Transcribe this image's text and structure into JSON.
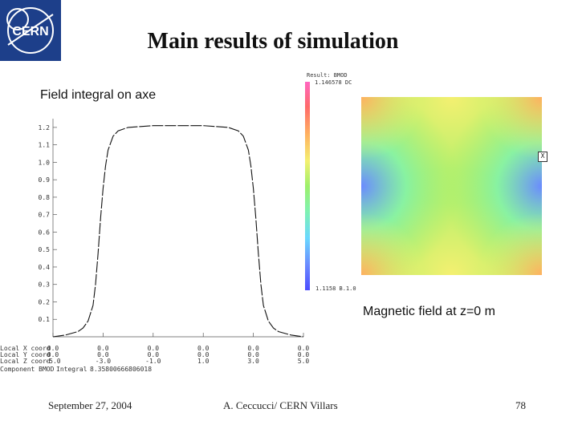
{
  "logo": {
    "text": "CERN",
    "icon": "cern-logo"
  },
  "title": "Main results of simulation",
  "field_label": "Field integral on axe",
  "magnetic_label": "Magnetic field at z=0 m",
  "colorbar": {
    "title": "Result: BMOD",
    "max_value": "1.146578 DC",
    "min_value": "1.1158 B.1.0",
    "colors": [
      "#ff66c0",
      "#ff6a6a",
      "#ffb060",
      "#f4f070",
      "#9ef06a",
      "#7ff2b0",
      "#6ad8ff",
      "#6a8aff",
      "#4c4cff"
    ]
  },
  "axis_marker": "X",
  "plot_text": {
    "ytick_labels": [
      "1.2",
      "1.1",
      "1.0",
      "0.9",
      "0.8",
      "0.7",
      "0.6",
      "0.5",
      "0.4",
      "0.3",
      "0.2",
      "0.1"
    ],
    "row_labels": [
      "Local X coord",
      "Local Y coord",
      "Local Z coord",
      "Component BMOD"
    ],
    "columns": [
      [
        "0.0",
        "0.0",
        "-5.0"
      ],
      [
        "0.0",
        "0.0",
        "-3.0"
      ],
      [
        "0.0",
        "0.0",
        "-1.0"
      ],
      [
        "0.0",
        "0.0",
        "1.0"
      ],
      [
        "0.0",
        "0.0",
        "3.0"
      ],
      [
        "0.0",
        "0.0",
        "5.0"
      ]
    ],
    "integral_label": "Integral",
    "integral_value": "8.35800666806018"
  },
  "chart_data": {
    "type": "line",
    "title": "Field integral on axe",
    "xlabel": "Local Z coord",
    "ylabel": "",
    "xlim": [
      -5.0,
      5.0
    ],
    "ylim": [
      0,
      1.25
    ],
    "y_ticks": [
      0.1,
      0.2,
      0.3,
      0.4,
      0.5,
      0.6,
      0.7,
      0.8,
      0.9,
      1.0,
      1.1,
      1.2
    ],
    "x_ticks": [
      -5.0,
      -3.0,
      -1.0,
      1.0,
      3.0,
      5.0
    ],
    "series": [
      {
        "values_x": [
          -5.0,
          -4.5,
          -4.0,
          -3.8,
          -3.6,
          -3.4,
          -3.3,
          -3.2,
          -3.1,
          -3.0,
          -2.9,
          -2.8,
          -2.6,
          -2.4,
          -2.0,
          -1.0,
          0.0,
          1.0,
          2.0,
          2.4,
          2.6,
          2.8,
          2.9,
          3.0,
          3.1,
          3.2,
          3.3,
          3.4,
          3.6,
          3.8,
          4.0,
          4.5,
          5.0
        ],
        "values_y": [
          0.0,
          0.01,
          0.03,
          0.05,
          0.09,
          0.18,
          0.3,
          0.48,
          0.68,
          0.85,
          0.98,
          1.07,
          1.15,
          1.18,
          1.2,
          1.21,
          1.21,
          1.21,
          1.2,
          1.18,
          1.15,
          1.07,
          0.98,
          0.85,
          0.68,
          0.48,
          0.3,
          0.18,
          0.09,
          0.05,
          0.03,
          0.01,
          0.0
        ]
      }
    ]
  },
  "footer": {
    "date": "September 27, 2004",
    "author": "A. Ceccucci/ CERN    Villars",
    "page": "78"
  }
}
